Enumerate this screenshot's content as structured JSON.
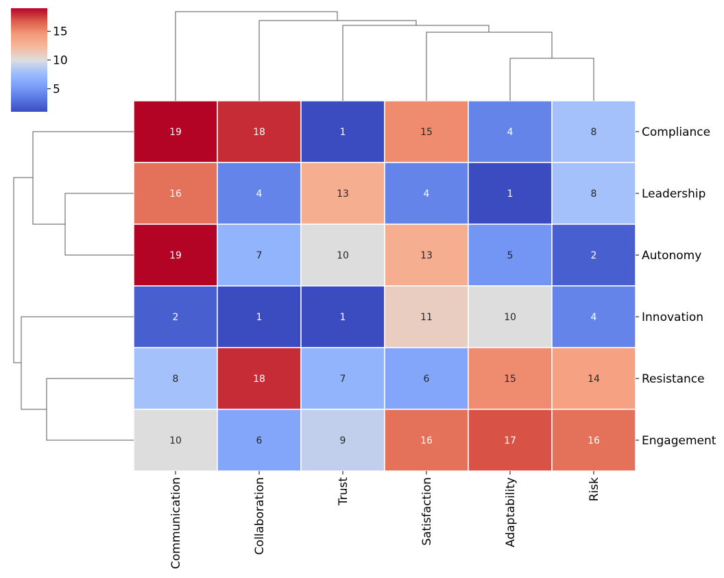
{
  "chart_data": {
    "type": "heatmap",
    "title": "",
    "xlabel": "",
    "ylabel": "",
    "colormap": "coolwarm",
    "columns": [
      "Communication",
      "Collaboration",
      "Trust",
      "Satisfaction",
      "Adaptability",
      "Risk"
    ],
    "rows": [
      "Compliance",
      "Leadership",
      "Autonomy",
      "Innovation",
      "Resistance",
      "Engagement"
    ],
    "values": [
      [
        19,
        18,
        1,
        15,
        4,
        8
      ],
      [
        16,
        4,
        13,
        4,
        1,
        8
      ],
      [
        19,
        7,
        10,
        13,
        5,
        2
      ],
      [
        2,
        1,
        1,
        11,
        10,
        4
      ],
      [
        8,
        18,
        7,
        6,
        15,
        14
      ],
      [
        10,
        6,
        9,
        16,
        17,
        16
      ]
    ],
    "colorbar": {
      "min": 1,
      "max": 19,
      "ticks": [
        "5",
        "10",
        "15"
      ]
    },
    "annotations": true,
    "row_dendrogram": true,
    "column_dendrogram": true,
    "colors": {
      "cold": "#3b4cc0",
      "neutral": "#dddddd",
      "hot": "#b40426",
      "grid": "#ffffff",
      "dendrogram": "#555555"
    }
  }
}
